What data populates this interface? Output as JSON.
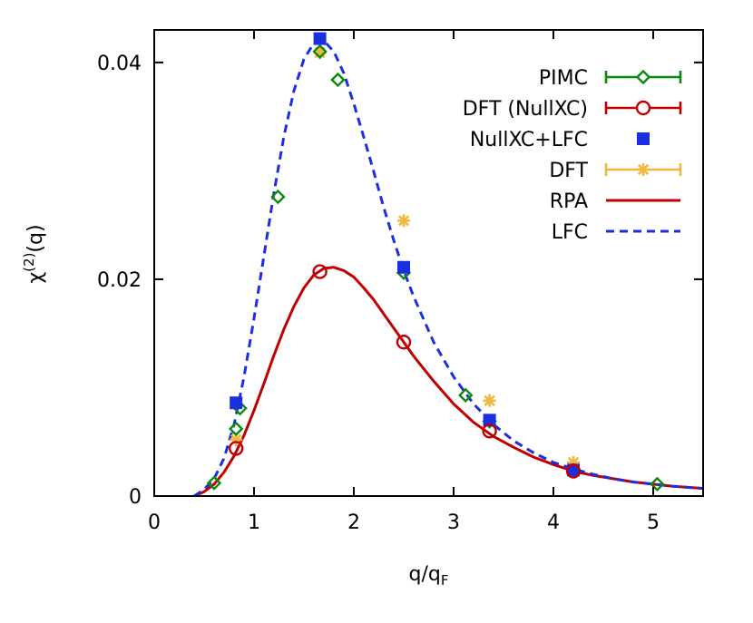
{
  "chart_data": {
    "type": "line",
    "xlabel": "q/q",
    "xlabel_sub": "F",
    "ylabel": "χ",
    "ylabel_sup": "(2)",
    "ylabel_tail": "(q)",
    "xlim": [
      0,
      5.5
    ],
    "ylim": [
      0,
      0.043
    ],
    "x_ticks": [
      0,
      1,
      2,
      3,
      4,
      5
    ],
    "y_ticks": [
      0,
      0.02,
      0.04
    ],
    "x_tick_labels": [
      "0",
      "1",
      "2",
      "3",
      "4",
      "5"
    ],
    "y_tick_labels": [
      "0",
      "0.02",
      "0.04"
    ],
    "grid": false,
    "legend_position": "top-right",
    "series": [
      {
        "name": "PIMC",
        "kind": "points",
        "marker": "diamond",
        "color": "#0a8a0a",
        "points": [
          [
            0.6,
            0.0012
          ],
          [
            0.82,
            0.0062
          ],
          [
            0.86,
            0.0081
          ],
          [
            1.24,
            0.0276
          ],
          [
            1.66,
            0.041
          ],
          [
            1.84,
            0.0384
          ],
          [
            2.5,
            0.0206
          ],
          [
            3.12,
            0.0093
          ],
          [
            3.36,
            0.0069
          ],
          [
            4.2,
            0.0024
          ],
          [
            5.04,
            0.0011
          ]
        ]
      },
      {
        "name": "DFT (NullXC)",
        "kind": "points",
        "marker": "circle",
        "color": "#c00000",
        "points": [
          [
            0.82,
            0.0044
          ],
          [
            1.66,
            0.0207
          ],
          [
            2.5,
            0.0142
          ],
          [
            3.36,
            0.006
          ],
          [
            4.2,
            0.0023
          ]
        ]
      },
      {
        "name": "NullXC+LFC",
        "kind": "points",
        "marker": "square",
        "color": "#1c2fe0",
        "points": [
          [
            0.82,
            0.0086
          ],
          [
            1.66,
            0.0422
          ],
          [
            2.5,
            0.0211
          ],
          [
            3.36,
            0.007
          ],
          [
            4.2,
            0.0024
          ]
        ]
      },
      {
        "name": "DFT",
        "kind": "points",
        "marker": "star",
        "color": "#f0b83c",
        "points": [
          [
            0.82,
            0.0052
          ],
          [
            1.66,
            0.0409
          ],
          [
            2.5,
            0.0254
          ],
          [
            3.36,
            0.0088
          ],
          [
            4.2,
            0.0031
          ]
        ]
      },
      {
        "name": "RPA",
        "kind": "line",
        "dash": "solid",
        "color": "#c00000",
        "points": [
          [
            0.4,
            0.0
          ],
          [
            0.5,
            0.0004
          ],
          [
            0.6,
            0.0011
          ],
          [
            0.7,
            0.0022
          ],
          [
            0.8,
            0.0037
          ],
          [
            0.9,
            0.0056
          ],
          [
            1.0,
            0.0079
          ],
          [
            1.1,
            0.0104
          ],
          [
            1.2,
            0.013
          ],
          [
            1.3,
            0.0154
          ],
          [
            1.4,
            0.0175
          ],
          [
            1.5,
            0.0192
          ],
          [
            1.6,
            0.0204
          ],
          [
            1.7,
            0.021
          ],
          [
            1.8,
            0.0211
          ],
          [
            1.9,
            0.0208
          ],
          [
            2.0,
            0.0202
          ],
          [
            2.1,
            0.0192
          ],
          [
            2.2,
            0.0181
          ],
          [
            2.3,
            0.0168
          ],
          [
            2.4,
            0.0155
          ],
          [
            2.5,
            0.0142
          ],
          [
            2.6,
            0.0129
          ],
          [
            2.8,
            0.0106
          ],
          [
            3.0,
            0.0085
          ],
          [
            3.2,
            0.0068
          ],
          [
            3.4,
            0.0055
          ],
          [
            3.6,
            0.0045
          ],
          [
            3.8,
            0.0036
          ],
          [
            4.0,
            0.0029
          ],
          [
            4.2,
            0.0023
          ],
          [
            4.4,
            0.0019
          ],
          [
            4.6,
            0.0016
          ],
          [
            4.8,
            0.0013
          ],
          [
            5.0,
            0.0011
          ],
          [
            5.2,
            0.0009
          ],
          [
            5.5,
            0.0007
          ]
        ]
      },
      {
        "name": "LFC",
        "kind": "line",
        "dash": "dashed",
        "color": "#1c2fe0",
        "points": [
          [
            0.4,
            0.0
          ],
          [
            0.5,
            0.0006
          ],
          [
            0.6,
            0.0016
          ],
          [
            0.7,
            0.0035
          ],
          [
            0.8,
            0.0066
          ],
          [
            0.9,
            0.011
          ],
          [
            1.0,
            0.0164
          ],
          [
            1.1,
            0.0222
          ],
          [
            1.2,
            0.028
          ],
          [
            1.3,
            0.0332
          ],
          [
            1.4,
            0.0374
          ],
          [
            1.5,
            0.0403
          ],
          [
            1.6,
            0.0418
          ],
          [
            1.7,
            0.042
          ],
          [
            1.8,
            0.041
          ],
          [
            1.9,
            0.039
          ],
          [
            2.0,
            0.0362
          ],
          [
            2.1,
            0.0331
          ],
          [
            2.2,
            0.0299
          ],
          [
            2.3,
            0.0266
          ],
          [
            2.4,
            0.0236
          ],
          [
            2.5,
            0.0208
          ],
          [
            2.6,
            0.0184
          ],
          [
            2.8,
            0.0142
          ],
          [
            3.0,
            0.011
          ],
          [
            3.2,
            0.0085
          ],
          [
            3.4,
            0.0066
          ],
          [
            3.6,
            0.0051
          ],
          [
            3.8,
            0.004
          ],
          [
            4.0,
            0.0031
          ],
          [
            4.2,
            0.0025
          ],
          [
            4.4,
            0.002
          ],
          [
            4.6,
            0.0016
          ],
          [
            4.8,
            0.0013
          ],
          [
            5.0,
            0.0011
          ],
          [
            5.2,
            0.0009
          ],
          [
            5.5,
            0.0007
          ]
        ]
      }
    ],
    "legend_entries": [
      {
        "label": "PIMC",
        "style": "errorbar-diamond",
        "color": "#0a8a0a"
      },
      {
        "label": "DFT (NullXC)",
        "style": "errorbar-circle",
        "color": "#c00000"
      },
      {
        "label": "NullXC+LFC",
        "style": "square",
        "color": "#1c2fe0"
      },
      {
        "label": "DFT",
        "style": "errorbar-star",
        "color": "#f0b83c"
      },
      {
        "label": "RPA",
        "style": "line",
        "color": "#c00000"
      },
      {
        "label": "LFC",
        "style": "dashed",
        "color": "#1c2fe0"
      }
    ]
  }
}
